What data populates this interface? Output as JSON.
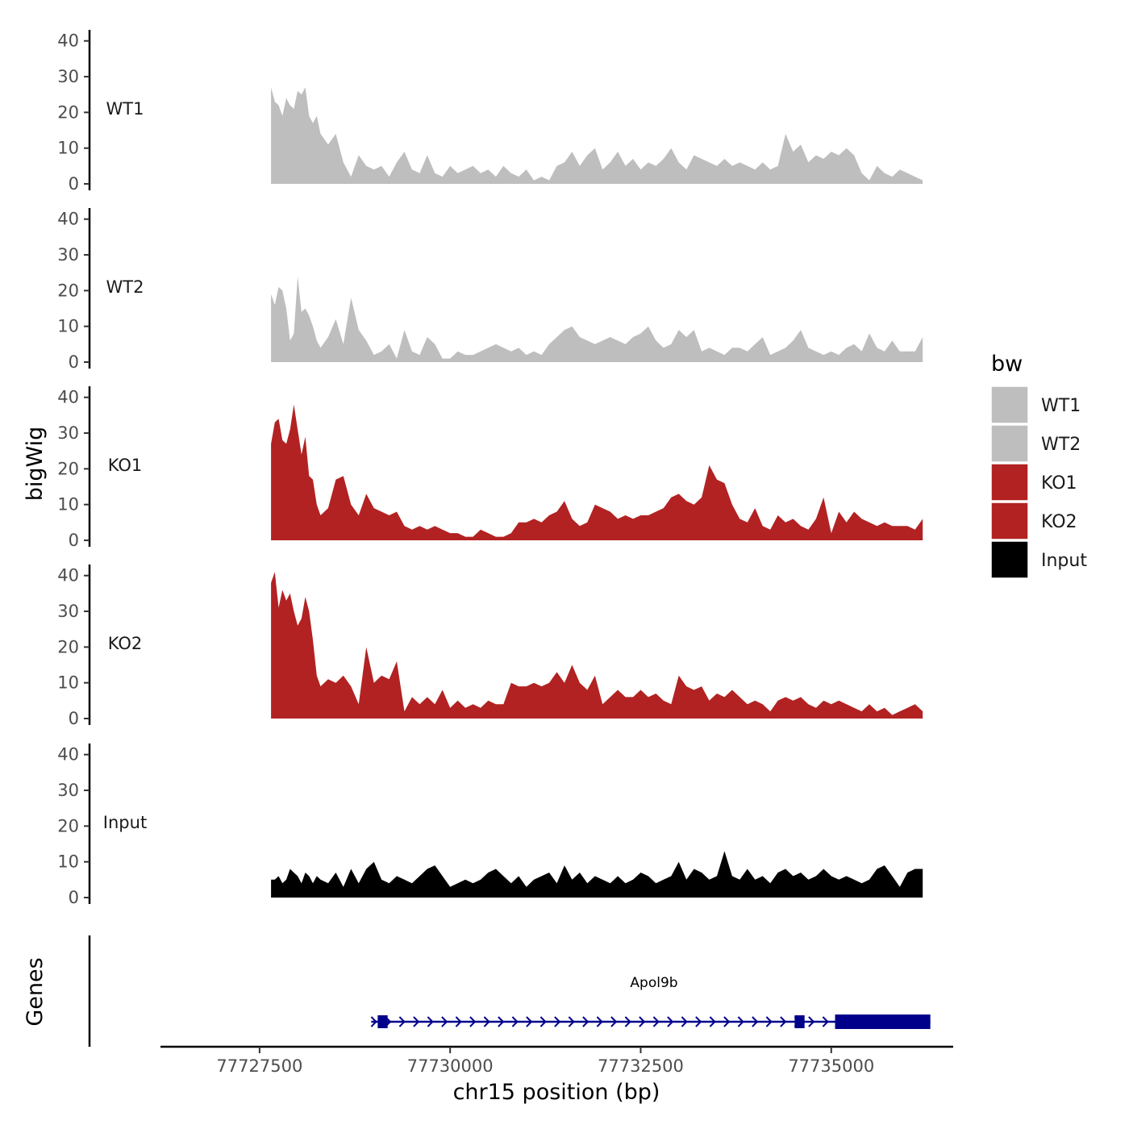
{
  "chart_data": {
    "type": "area",
    "title": "",
    "xlabel": "chr15 position (bp)",
    "ylabel": "bigWig",
    "genes_axis_label": "Genes",
    "xlim": [
      77726200,
      77736600
    ],
    "ylim": [
      0,
      44
    ],
    "x_ticks": [
      77727500,
      77730000,
      77732500,
      77735000
    ],
    "x_tick_labels": [
      "77727500",
      "77730000",
      "77732500",
      "77735000"
    ],
    "y_ticks": [
      0,
      10,
      20,
      30,
      40
    ],
    "y_tick_labels": [
      "0",
      "10",
      "20",
      "30",
      "40"
    ],
    "legend": {
      "title": "bw",
      "position": "right",
      "items": [
        {
          "label": "WT1",
          "color": "#bebebe"
        },
        {
          "label": "WT2",
          "color": "#bebebe"
        },
        {
          "label": "KO1",
          "color": "#b22222"
        },
        {
          "label": "KO2",
          "color": "#b22222"
        },
        {
          "label": "Input",
          "color": "#000000"
        }
      ]
    },
    "series": [
      {
        "name": "WT1",
        "color": "#bebebe",
        "x": [
          77727650,
          77727700,
          77727750,
          77727800,
          77727850,
          77727900,
          77727950,
          77728000,
          77728050,
          77728100,
          77728150,
          77728200,
          77728250,
          77728300,
          77728400,
          77728500,
          77728600,
          77728700,
          77728800,
          77728900,
          77729000,
          77729100,
          77729200,
          77729300,
          77729400,
          77729500,
          77729600,
          77729700,
          77729800,
          77729900,
          77730000,
          77730100,
          77730200,
          77730300,
          77730400,
          77730500,
          77730600,
          77730700,
          77730800,
          77730900,
          77731000,
          77731100,
          77731200,
          77731300,
          77731400,
          77731500,
          77731600,
          77731700,
          77731800,
          77731900,
          77732000,
          77732100,
          77732200,
          77732300,
          77732400,
          77732500,
          77732600,
          77732700,
          77732800,
          77732900,
          77733000,
          77733100,
          77733200,
          77733300,
          77733400,
          77733500,
          77733600,
          77733700,
          77733800,
          77733900,
          77734000,
          77734100,
          77734200,
          77734300,
          77734400,
          77734500,
          77734600,
          77734700,
          77734800,
          77734900,
          77735000,
          77735100,
          77735200,
          77735300,
          77735400,
          77735500,
          77735600,
          77735700,
          77735800,
          77735900,
          77736000,
          77736100,
          77736200
        ],
        "values": [
          27,
          23,
          22,
          19,
          24,
          22,
          21,
          26,
          25,
          27,
          19,
          17,
          19,
          14,
          11,
          14,
          6,
          2,
          8,
          5,
          4,
          5,
          2,
          6,
          9,
          4,
          3,
          8,
          3,
          2,
          5,
          3,
          4,
          5,
          3,
          4,
          2,
          5,
          3,
          2,
          4,
          1,
          2,
          1,
          5,
          6,
          9,
          5,
          8,
          10,
          4,
          6,
          9,
          5,
          7,
          4,
          6,
          5,
          7,
          10,
          6,
          4,
          8,
          7,
          6,
          5,
          7,
          5,
          6,
          5,
          4,
          6,
          4,
          5,
          14,
          9,
          11,
          6,
          8,
          7,
          9,
          8,
          10,
          8,
          3,
          1,
          5,
          3,
          2,
          4,
          3,
          2,
          1
        ]
      },
      {
        "name": "WT2",
        "color": "#bebebe",
        "x": [
          77727650,
          77727700,
          77727750,
          77727800,
          77727850,
          77727900,
          77727950,
          77728000,
          77728050,
          77728100,
          77728150,
          77728200,
          77728250,
          77728300,
          77728400,
          77728500,
          77728600,
          77728700,
          77728800,
          77728900,
          77729000,
          77729100,
          77729200,
          77729300,
          77729400,
          77729500,
          77729600,
          77729700,
          77729800,
          77729900,
          77730000,
          77730100,
          77730200,
          77730300,
          77730400,
          77730500,
          77730600,
          77730700,
          77730800,
          77730900,
          77731000,
          77731100,
          77731200,
          77731300,
          77731400,
          77731500,
          77731600,
          77731700,
          77731800,
          77731900,
          77732000,
          77732100,
          77732200,
          77732300,
          77732400,
          77732500,
          77732600,
          77732700,
          77732800,
          77732900,
          77733000,
          77733100,
          77733200,
          77733300,
          77733400,
          77733500,
          77733600,
          77733700,
          77733800,
          77733900,
          77734000,
          77734100,
          77734200,
          77734300,
          77734400,
          77734500,
          77734600,
          77734700,
          77734800,
          77734900,
          77735000,
          77735100,
          77735200,
          77735300,
          77735400,
          77735500,
          77735600,
          77735700,
          77735800,
          77735900,
          77736000,
          77736100,
          77736200
        ],
        "values": [
          19,
          16,
          21,
          20,
          15,
          6,
          8,
          24,
          14,
          15,
          13,
          10,
          6,
          4,
          7,
          12,
          5,
          18,
          9,
          6,
          2,
          3,
          5,
          1,
          9,
          3,
          2,
          7,
          5,
          1,
          1,
          3,
          2,
          2,
          3,
          4,
          5,
          4,
          3,
          4,
          2,
          3,
          2,
          5,
          7,
          9,
          10,
          7,
          6,
          5,
          6,
          7,
          6,
          5,
          7,
          8,
          10,
          6,
          4,
          5,
          9,
          7,
          9,
          3,
          4,
          3,
          2,
          4,
          4,
          3,
          5,
          7,
          2,
          3,
          4,
          6,
          9,
          4,
          3,
          2,
          3,
          2,
          4,
          5,
          3,
          8,
          4,
          3,
          6,
          3,
          3,
          3,
          7
        ]
      },
      {
        "name": "KO1",
        "color": "#b22222",
        "x": [
          77727650,
          77727700,
          77727750,
          77727800,
          77727850,
          77727900,
          77727950,
          77728000,
          77728050,
          77728100,
          77728150,
          77728200,
          77728250,
          77728300,
          77728400,
          77728500,
          77728600,
          77728700,
          77728800,
          77728900,
          77729000,
          77729100,
          77729200,
          77729300,
          77729400,
          77729500,
          77729600,
          77729700,
          77729800,
          77729900,
          77730000,
          77730100,
          77730200,
          77730300,
          77730400,
          77730500,
          77730600,
          77730700,
          77730800,
          77730900,
          77731000,
          77731100,
          77731200,
          77731300,
          77731400,
          77731500,
          77731600,
          77731700,
          77731800,
          77731900,
          77732000,
          77732100,
          77732200,
          77732300,
          77732400,
          77732500,
          77732600,
          77732700,
          77732800,
          77732900,
          77733000,
          77733100,
          77733200,
          77733300,
          77733400,
          77733500,
          77733600,
          77733700,
          77733800,
          77733900,
          77734000,
          77734100,
          77734200,
          77734300,
          77734400,
          77734500,
          77734600,
          77734700,
          77734800,
          77734900,
          77735000,
          77735100,
          77735200,
          77735300,
          77735400,
          77735500,
          77735600,
          77735700,
          77735800,
          77735900,
          77736000,
          77736100,
          77736200
        ],
        "values": [
          27,
          33,
          34,
          28,
          27,
          31,
          38,
          31,
          24,
          29,
          18,
          17,
          10,
          7,
          9,
          17,
          18,
          10,
          7,
          13,
          9,
          8,
          7,
          8,
          4,
          3,
          4,
          3,
          4,
          3,
          2,
          2,
          1,
          1,
          3,
          2,
          1,
          1,
          2,
          5,
          5,
          6,
          5,
          7,
          8,
          11,
          6,
          4,
          5,
          10,
          9,
          8,
          6,
          7,
          6,
          7,
          7,
          8,
          9,
          12,
          13,
          11,
          10,
          12,
          21,
          17,
          16,
          10,
          6,
          5,
          9,
          4,
          3,
          7,
          5,
          6,
          4,
          3,
          6,
          12,
          2,
          8,
          5,
          8,
          6,
          5,
          4,
          5,
          4,
          4,
          4,
          3,
          6
        ]
      },
      {
        "name": "KO2",
        "color": "#b22222",
        "x": [
          77727650,
          77727700,
          77727750,
          77727800,
          77727850,
          77727900,
          77727950,
          77728000,
          77728050,
          77728100,
          77728150,
          77728200,
          77728250,
          77728300,
          77728400,
          77728500,
          77728600,
          77728700,
          77728800,
          77728900,
          77729000,
          77729100,
          77729200,
          77729300,
          77729400,
          77729500,
          77729600,
          77729700,
          77729800,
          77729900,
          77730000,
          77730100,
          77730200,
          77730300,
          77730400,
          77730500,
          77730600,
          77730700,
          77730800,
          77730900,
          77731000,
          77731100,
          77731200,
          77731300,
          77731400,
          77731500,
          77731600,
          77731700,
          77731800,
          77731900,
          77732000,
          77732100,
          77732200,
          77732300,
          77732400,
          77732500,
          77732600,
          77732700,
          77732800,
          77732900,
          77733000,
          77733100,
          77733200,
          77733300,
          77733400,
          77733500,
          77733600,
          77733700,
          77733800,
          77733900,
          77734000,
          77734100,
          77734200,
          77734300,
          77734400,
          77734500,
          77734600,
          77734700,
          77734800,
          77734900,
          77735000,
          77735100,
          77735200,
          77735300,
          77735400,
          77735500,
          77735600,
          77735700,
          77735800,
          77735900,
          77736000,
          77736100,
          77736200
        ],
        "values": [
          38,
          41,
          31,
          36,
          33,
          35,
          30,
          26,
          28,
          34,
          30,
          22,
          12,
          9,
          11,
          10,
          12,
          9,
          4,
          20,
          10,
          12,
          11,
          16,
          2,
          6,
          4,
          6,
          4,
          8,
          3,
          5,
          3,
          4,
          3,
          5,
          4,
          4,
          10,
          9,
          9,
          10,
          9,
          10,
          13,
          10,
          15,
          10,
          8,
          12,
          4,
          6,
          8,
          6,
          6,
          8,
          6,
          7,
          5,
          4,
          12,
          9,
          8,
          9,
          5,
          7,
          6,
          8,
          6,
          4,
          5,
          4,
          2,
          5,
          6,
          5,
          6,
          4,
          3,
          5,
          4,
          5,
          4,
          3,
          2,
          4,
          2,
          3,
          1,
          2,
          3,
          4,
          2
        ]
      },
      {
        "name": "Input",
        "color": "#000000",
        "x": [
          77727650,
          77727700,
          77727750,
          77727800,
          77727850,
          77727900,
          77727950,
          77728000,
          77728050,
          77728100,
          77728150,
          77728200,
          77728250,
          77728300,
          77728400,
          77728500,
          77728600,
          77728700,
          77728800,
          77728900,
          77729000,
          77729100,
          77729200,
          77729300,
          77729400,
          77729500,
          77729600,
          77729700,
          77729800,
          77729900,
          77730000,
          77730100,
          77730200,
          77730300,
          77730400,
          77730500,
          77730600,
          77730700,
          77730800,
          77730900,
          77731000,
          77731100,
          77731200,
          77731300,
          77731400,
          77731500,
          77731600,
          77731700,
          77731800,
          77731900,
          77732000,
          77732100,
          77732200,
          77732300,
          77732400,
          77732500,
          77732600,
          77732700,
          77732800,
          77732900,
          77733000,
          77733100,
          77733200,
          77733300,
          77733400,
          77733500,
          77733600,
          77733700,
          77733800,
          77733900,
          77734000,
          77734100,
          77734200,
          77734300,
          77734400,
          77734500,
          77734600,
          77734700,
          77734800,
          77734900,
          77735000,
          77735100,
          77735200,
          77735300,
          77735400,
          77735500,
          77735600,
          77735700,
          77735800,
          77735900,
          77736000,
          77736100,
          77736200
        ],
        "values": [
          5,
          5,
          6,
          4,
          5,
          8,
          7,
          6,
          4,
          7,
          6,
          4,
          6,
          5,
          4,
          7,
          3,
          8,
          4,
          8,
          10,
          5,
          4,
          6,
          5,
          4,
          6,
          8,
          9,
          6,
          3,
          4,
          5,
          4,
          5,
          7,
          8,
          6,
          4,
          6,
          3,
          5,
          6,
          7,
          4,
          9,
          5,
          7,
          4,
          6,
          5,
          4,
          6,
          4,
          5,
          7,
          6,
          4,
          5,
          6,
          10,
          5,
          8,
          7,
          5,
          6,
          13,
          6,
          5,
          8,
          5,
          6,
          4,
          7,
          8,
          6,
          7,
          5,
          6,
          8,
          6,
          5,
          6,
          5,
          4,
          5,
          8,
          9,
          6,
          3,
          7,
          8,
          8
        ]
      }
    ],
    "genes": [
      {
        "name": "Apol9b",
        "strand": "+",
        "start": 77729050,
        "end": 77736300,
        "exons": [
          [
            77729050,
            77729180
          ],
          [
            77734520,
            77734650
          ],
          [
            77735050,
            77736300
          ]
        ]
      }
    ]
  }
}
